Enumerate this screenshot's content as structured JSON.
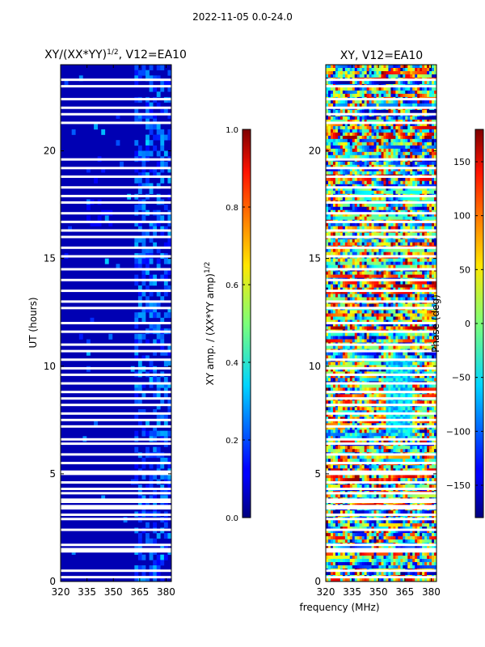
{
  "figure": {
    "title": "2022-11-05 0.0-24.0",
    "xlabel": "frequency (MHz)"
  },
  "chart_data": [
    {
      "type": "heatmap",
      "title_main": "XY/(XX*YY)",
      "title_sup": "1/2",
      "title_rest": ", V12=EA10",
      "ylabel": "UT (hours)",
      "xlim": [
        320,
        383
      ],
      "ylim": [
        0,
        24
      ],
      "x_ticks": [
        "320",
        "335",
        "350",
        "365",
        "380"
      ],
      "x_tick_values": [
        320,
        335,
        350,
        365,
        380
      ],
      "y_ticks": [
        "0",
        "5",
        "10",
        "15",
        "20"
      ],
      "y_tick_values": [
        0,
        5,
        10,
        15,
        20
      ],
      "colorbar": {
        "label_main": "XY amp. / (XX*YY amp)",
        "label_sup": "1/2",
        "range": [
          0,
          1
        ],
        "ticks": [
          "0.0",
          "0.2",
          "0.4",
          "0.6",
          "0.8",
          "1.0"
        ],
        "tick_values": [
          0,
          0.2,
          0.4,
          0.6,
          0.8,
          1.0
        ]
      },
      "colormap": "jet",
      "dominant_value": 0.05,
      "bright_band_mhz": [
        361,
        383
      ],
      "flagged_hours": [
        0.2,
        0.5,
        1.4,
        1.5,
        1.7,
        2.4,
        2.9,
        3.1,
        3.4,
        3.5,
        3.7,
        3.8,
        4.1,
        4.3,
        4.6,
        5.0,
        5.1,
        5.5,
        5.9,
        6.4,
        6.6,
        7.2,
        7.5,
        7.8,
        8.2,
        8.5,
        8.8,
        9.2,
        9.6,
        9.9,
        10.3,
        10.7,
        11.0,
        11.6,
        12.0,
        12.7,
        13.0,
        13.5,
        14.0,
        14.5,
        15.1,
        15.5,
        16.0,
        16.3,
        16.7,
        17.1,
        17.6,
        17.9,
        18.3,
        18.8,
        19.2,
        19.6,
        21.3,
        21.7,
        22.0,
        22.4,
        23.0,
        23.3
      ]
    },
    {
      "type": "heatmap",
      "title_main": "XY, V12=EA10",
      "title_sup": "",
      "title_rest": "",
      "ylabel": "",
      "xlim": [
        320,
        383
      ],
      "ylim": [
        0,
        24
      ],
      "x_ticks": [
        "320",
        "335",
        "350",
        "365",
        "380"
      ],
      "x_tick_values": [
        320,
        335,
        350,
        365,
        380
      ],
      "y_ticks": [
        "0",
        "5",
        "10",
        "15",
        "20"
      ],
      "y_tick_values": [
        0,
        5,
        10,
        15,
        20
      ],
      "colorbar": {
        "label_main": "Phase (deg)",
        "label_sup": "",
        "range": [
          -180,
          180
        ],
        "ticks": [
          "−150",
          "−100",
          "−50",
          "0",
          "50",
          "100",
          "150"
        ],
        "tick_values": [
          -150,
          -100,
          -50,
          0,
          50,
          100,
          150
        ]
      },
      "colormap": "jet",
      "flagged_hours": [
        0.2,
        0.5,
        1.4,
        1.5,
        1.7,
        2.4,
        2.9,
        3.1,
        3.4,
        3.5,
        3.7,
        3.8,
        4.1,
        4.3,
        4.6,
        5.0,
        5.1,
        5.5,
        5.9,
        6.4,
        6.6,
        7.2,
        7.5,
        7.8,
        8.2,
        8.5,
        8.8,
        9.2,
        9.6,
        9.9,
        10.3,
        10.7,
        11.0,
        11.6,
        12.0,
        12.7,
        13.0,
        13.5,
        14.0,
        14.5,
        15.1,
        15.5,
        16.0,
        16.3,
        16.7,
        17.1,
        17.6,
        17.9,
        18.3,
        18.8,
        19.2,
        19.6,
        21.3,
        21.7,
        22.0,
        22.4,
        23.0,
        23.3
      ]
    }
  ]
}
